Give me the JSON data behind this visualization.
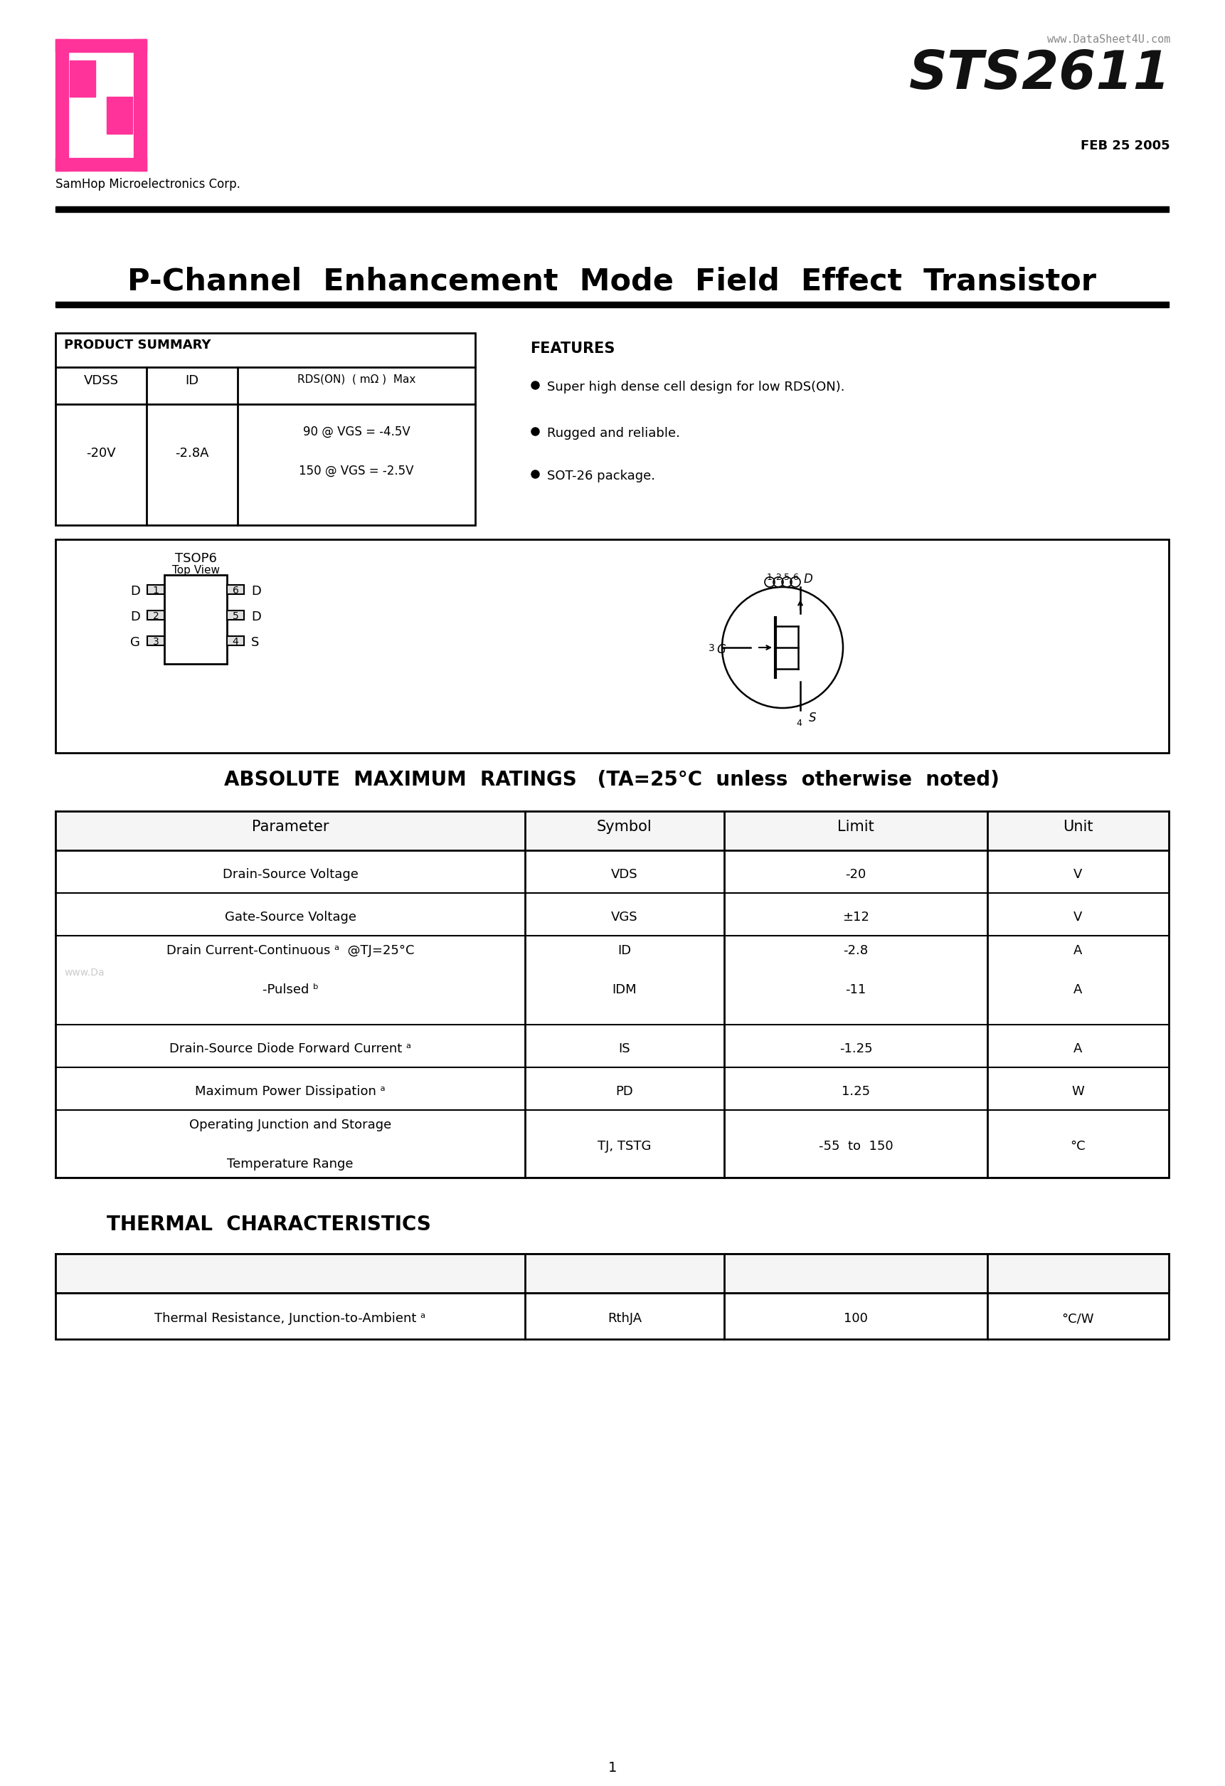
{
  "website": "www.DataSheet4U.com",
  "part_number": "STS2611",
  "date": "FEB 25 2005",
  "company": "SamHop Microelectronics Corp.",
  "title": "P-Channel  Enhancement  Mode  Field  Effect  Transistor",
  "product_summary_header": "PRODUCT SUMMARY",
  "ps_col1": "VDSS",
  "ps_col2": "ID",
  "ps_col3": "RDS(ON)  ( mΩ )  Max",
  "ps_val1": "-20V",
  "ps_val2": "-2.8A",
  "ps_val3a": "90 @ VGS = -4.5V",
  "ps_val3b": "150 @ VGS = -2.5V",
  "features_header": "FEATURES",
  "feature1": "Super high dense cell design for low RDS(ON).",
  "feature2": "Rugged and reliable.",
  "feature3": "SOT-26 package.",
  "pkg_label": "TSOP6",
  "pkg_view": "Top View",
  "abs_max_title": "ABSOLUTE  MAXIMUM  RATINGS",
  "abs_max_cond": "(TA=25°C  unless  otherwise  noted)",
  "table2_headers": [
    "Parameter",
    "Symbol",
    "Limit",
    "Unit"
  ],
  "table2_rows": [
    [
      "Drain-Source Voltage",
      "VDS",
      "-20",
      "V"
    ],
    [
      "Gate-Source Voltage",
      "VGS",
      "±12",
      "V"
    ],
    [
      "Drain Current-Continuous ᵃ  @TJ=25°C\n-Pulsed ᵇ",
      "ID\nIDM",
      "-2.8\n-11",
      "A\nA"
    ],
    [
      "Drain-Source Diode Forward Current ᵃ",
      "IS",
      "-1.25",
      "A"
    ],
    [
      "Maximum Power Dissipation ᵃ",
      "PD",
      "1.25",
      "W"
    ],
    [
      "Operating Junction and Storage\nTemperature Range",
      "TJ, TSTG",
      "-55  to  150",
      "°C"
    ]
  ],
  "thermal_title": "THERMAL  CHARACTERISTICS",
  "thermal_rows": [
    [
      "Thermal Resistance, Junction-to-Ambient ᵃ",
      "RthJA",
      "100",
      "°C/W"
    ]
  ],
  "page_num": "1",
  "logo_color": "#FF3399",
  "text_color": "#000000",
  "bg_color": "#FFFFFF"
}
